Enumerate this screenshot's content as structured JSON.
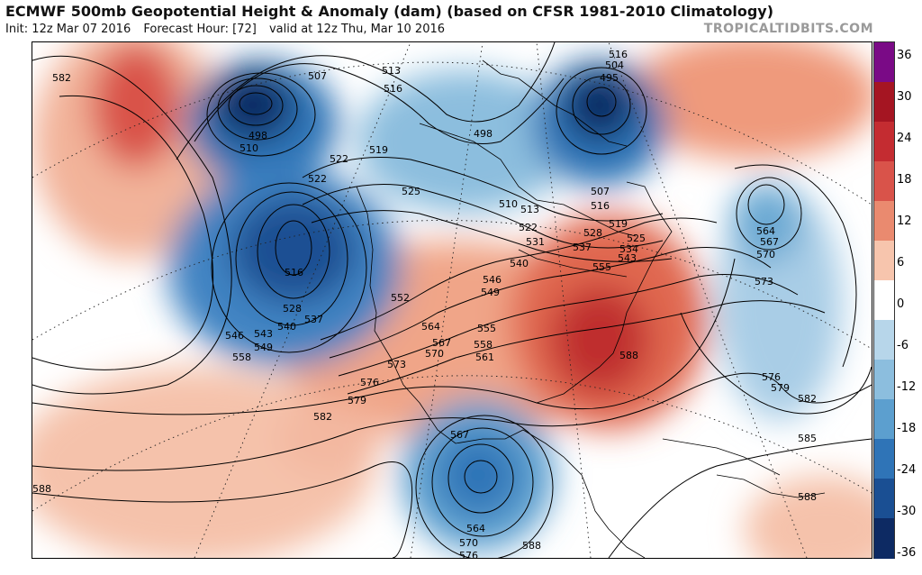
{
  "header": {
    "title": "ECMWF 500mb Geopotential Height & Anomaly (dam) (based on CFSR 1981-2010 Climatology)",
    "init": "Init: 12z Mar 07 2016",
    "forecast_hour": "Forecast Hour: [72]",
    "valid": "valid at 12z Thu, Mar 10 2016",
    "watermark": "TROPICALTIDBITS.COM"
  },
  "colorbar": {
    "ticks": [
      "36",
      "30",
      "24",
      "18",
      "12",
      "6",
      "0",
      "-6",
      "-12",
      "-18",
      "-24",
      "-30",
      "-36"
    ],
    "colors": [
      "#7a0a86",
      "#a51522",
      "#c42c31",
      "#d9534a",
      "#ea8a6f",
      "#f7c5ad",
      "#ffffff",
      "#b7d6ea",
      "#8cbede",
      "#5c9fcf",
      "#2f74b7",
      "#1a4f93",
      "#0d2a63"
    ]
  },
  "contour_labels": [
    {
      "text": "582"
    },
    {
      "text": "507"
    },
    {
      "text": "513"
    },
    {
      "text": "516"
    },
    {
      "text": "498"
    },
    {
      "text": "510"
    },
    {
      "text": "522"
    },
    {
      "text": "522"
    },
    {
      "text": "519"
    },
    {
      "text": "525"
    },
    {
      "text": "516"
    },
    {
      "text": "528"
    },
    {
      "text": "537"
    },
    {
      "text": "540"
    },
    {
      "text": "543"
    },
    {
      "text": "546"
    },
    {
      "text": "549"
    },
    {
      "text": "558"
    },
    {
      "text": "552"
    },
    {
      "text": "498"
    },
    {
      "text": "516"
    },
    {
      "text": "504"
    },
    {
      "text": "495"
    },
    {
      "text": "507"
    },
    {
      "text": "510"
    },
    {
      "text": "513"
    },
    {
      "text": "516"
    },
    {
      "text": "519"
    },
    {
      "text": "522"
    },
    {
      "text": "525"
    },
    {
      "text": "528"
    },
    {
      "text": "531"
    },
    {
      "text": "537"
    },
    {
      "text": "534"
    },
    {
      "text": "543"
    },
    {
      "text": "555"
    },
    {
      "text": "540"
    },
    {
      "text": "546"
    },
    {
      "text": "549"
    },
    {
      "text": "564"
    },
    {
      "text": "567"
    },
    {
      "text": "570"
    },
    {
      "text": "573"
    },
    {
      "text": "555"
    },
    {
      "text": "558"
    },
    {
      "text": "561"
    },
    {
      "text": "576"
    },
    {
      "text": "579"
    },
    {
      "text": "582"
    },
    {
      "text": "588"
    },
    {
      "text": "564"
    },
    {
      "text": "567"
    },
    {
      "text": "570"
    },
    {
      "text": "573"
    },
    {
      "text": "576"
    },
    {
      "text": "579"
    },
    {
      "text": "582"
    },
    {
      "text": "585"
    },
    {
      "text": "588"
    },
    {
      "text": "567"
    },
    {
      "text": "564"
    },
    {
      "text": "570"
    },
    {
      "text": "576"
    },
    {
      "text": "588"
    },
    {
      "text": "588"
    }
  ]
}
